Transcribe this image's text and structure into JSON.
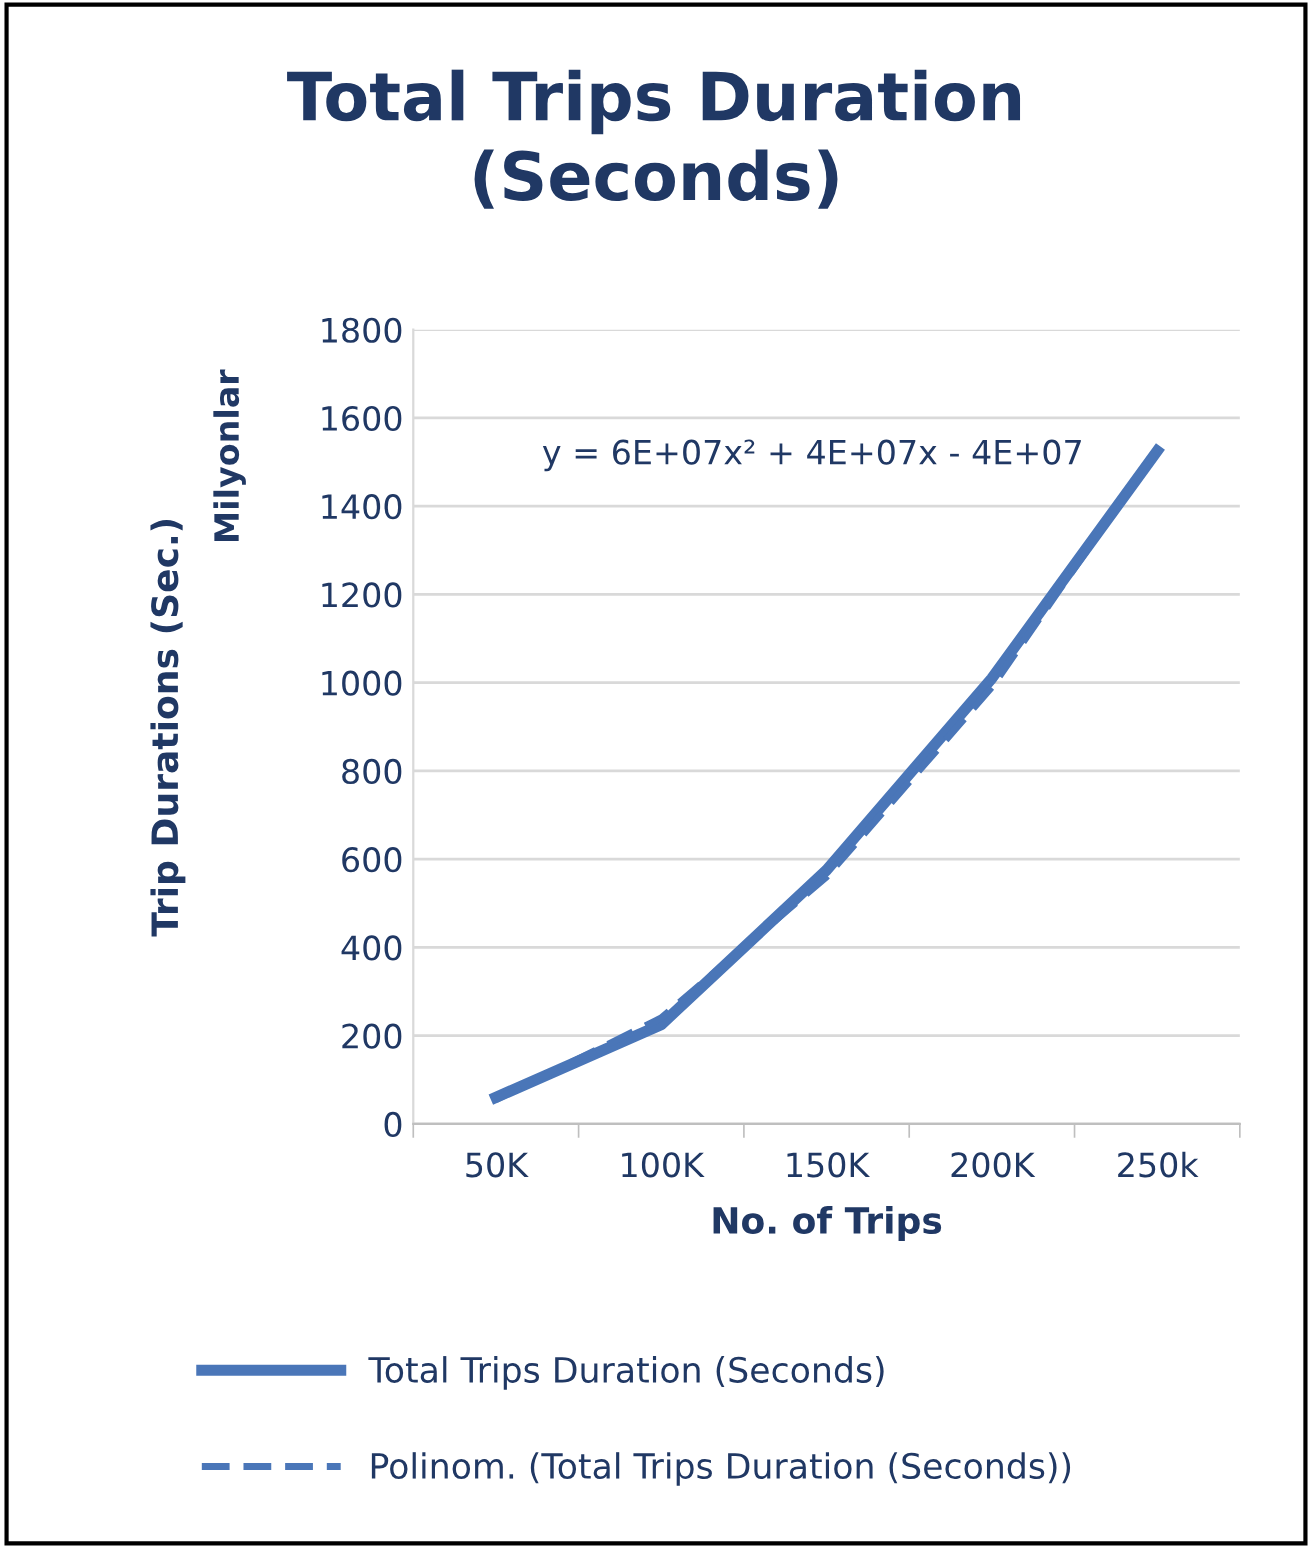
{
  "chart_data": {
    "type": "line",
    "title": "Total Trips Duration\n(Seconds)",
    "xlabel": "No. of Trips",
    "ylabel": "Trip Durations (Sec.)",
    "annotations": [
      "Milyonlar",
      "y = 6E+07x² + 4E+07x - 4E+07"
    ],
    "categories": [
      "50K",
      "100K",
      "150K",
      "200K",
      "250k"
    ],
    "series": [
      {
        "name": "Total Trips Duration (Seconds)",
        "color": "#4a76b8",
        "values": [
          60,
          225,
          575,
          1010,
          1525
        ],
        "line_style": "solid"
      },
      {
        "name": "Polinom. (Total Trips Duration (Seconds))",
        "color": "#4a76b8",
        "values": [
          55,
          240,
          560,
          990,
          1530
        ],
        "line_style": "dashed"
      }
    ],
    "ylim": [
      0,
      1800
    ],
    "yticks": [
      0,
      200,
      400,
      600,
      800,
      1000,
      1200,
      1400,
      1600,
      1800
    ],
    "grid": "y",
    "legend": "bottom"
  }
}
